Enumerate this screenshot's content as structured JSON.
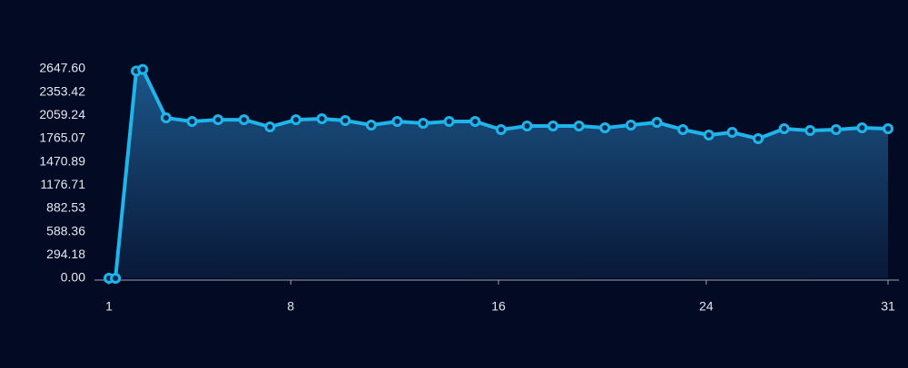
{
  "chart_data": {
    "type": "area-line",
    "x": [
      1,
      1.25,
      2.05,
      2.3,
      3.2,
      4.2,
      5.2,
      6.2,
      7.2,
      8.2,
      9.2,
      10.1,
      11.1,
      12.1,
      13.1,
      14.1,
      15.1,
      16.1,
      17.1,
      18.1,
      19.1,
      20.1,
      21.1,
      22.1,
      23.1,
      24.1,
      25.0,
      26.0,
      27.0,
      28.0,
      29.0,
      30.0,
      31.0
    ],
    "values": [
      0,
      0,
      2620,
      2640,
      2028,
      1983,
      2005,
      2005,
      1914,
      2005,
      2017,
      1994,
      1937,
      1983,
      1960,
      1983,
      1983,
      1880,
      1925,
      1925,
      1925,
      1902,
      1937,
      1971,
      1880,
      1811,
      1845,
      1765,
      1891,
      1868,
      1880,
      1902,
      1891
    ],
    "color": "#1fb4ea",
    "xlim": [
      1,
      31
    ],
    "xticks": [
      1,
      8,
      16,
      24,
      31
    ],
    "ylim": [
      0,
      2647.6
    ],
    "yticks": [
      {
        "value": 0,
        "label": "0.00"
      },
      {
        "value": 294.18,
        "label": "294.18"
      },
      {
        "value": 588.36,
        "label": "588.36"
      },
      {
        "value": 882.53,
        "label": "882.53"
      },
      {
        "value": 1176.71,
        "label": "1176.71"
      },
      {
        "value": 1470.89,
        "label": "1470.89"
      },
      {
        "value": 1765.07,
        "label": "1765.07"
      },
      {
        "value": 2059.24,
        "label": "2059.24"
      },
      {
        "value": 2353.42,
        "label": "2353.42"
      },
      {
        "value": 2647.6,
        "label": "2647.60"
      }
    ]
  }
}
